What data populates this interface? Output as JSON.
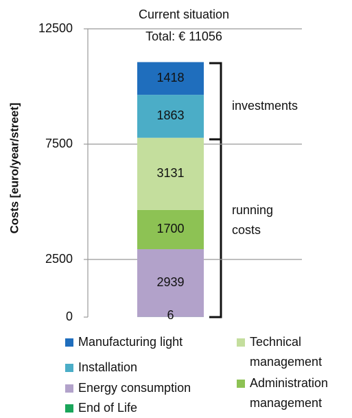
{
  "chart_data": {
    "type": "stacked_bar",
    "title": "Current situation",
    "subtitle": "Total: € 11056",
    "ylabel": "Costs [euro/year/street]",
    "ylim": [
      0,
      12500
    ],
    "yticks": [
      0,
      2500,
      7500,
      12500
    ],
    "grid": true,
    "series": [
      {
        "name": "End of Life",
        "color": "#1aa55a",
        "values": [
          6
        ]
      },
      {
        "name": "Energy consumption",
        "color": "#b2a2ca",
        "values": [
          2939
        ]
      },
      {
        "name": "Administration management",
        "color": "#8dc254",
        "values": [
          1700
        ]
      },
      {
        "name": "Technical management",
        "color": "#c4de9d",
        "values": [
          3131
        ]
      },
      {
        "name": "Installation",
        "color": "#4badc7",
        "values": [
          1863
        ]
      },
      {
        "name": "Manufacturing light",
        "color": "#1f6ebd",
        "values": [
          1418
        ]
      }
    ],
    "annotations": [
      "investments",
      "running costs"
    ]
  }
}
